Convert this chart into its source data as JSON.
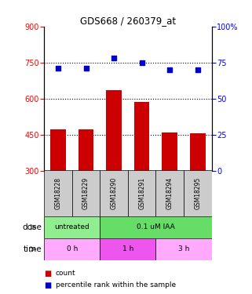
{
  "title": "GDS668 / 260379_at",
  "samples": [
    "GSM18228",
    "GSM18229",
    "GSM18290",
    "GSM18291",
    "GSM18294",
    "GSM18295"
  ],
  "bar_values": [
    470,
    470,
    635,
    585,
    460,
    455
  ],
  "bar_color": "#cc0000",
  "scatter_values": [
    71,
    71,
    78,
    75,
    70,
    70
  ],
  "scatter_color": "#0000cc",
  "ylim_left": [
    300,
    900
  ],
  "ylim_right": [
    0,
    100
  ],
  "yticks_left": [
    300,
    450,
    600,
    750,
    900
  ],
  "yticks_right": [
    0,
    25,
    50,
    75,
    100
  ],
  "ytick_labels_right": [
    "0",
    "25",
    "50",
    "75",
    "100%"
  ],
  "hlines": [
    450,
    600,
    750
  ],
  "dose_groups": [
    {
      "label": "untreated",
      "color": "#90ee90",
      "start": 0,
      "end": 1
    },
    {
      "label": "0.1 uM IAA",
      "color": "#66dd66",
      "start": 2,
      "end": 5
    }
  ],
  "time_groups": [
    {
      "label": "0 h",
      "color": "#ffaaff",
      "start": 0,
      "end": 1
    },
    {
      "label": "1 h",
      "color": "#ee55ee",
      "start": 2,
      "end": 3
    },
    {
      "label": "3 h",
      "color": "#ffaaff",
      "start": 4,
      "end": 5
    }
  ],
  "dose_row_label": "dose",
  "time_row_label": "time",
  "legend_count_color": "#cc0000",
  "legend_pct_color": "#0000cc",
  "bar_bottom": 300,
  "gsm_bg": "#cccccc"
}
